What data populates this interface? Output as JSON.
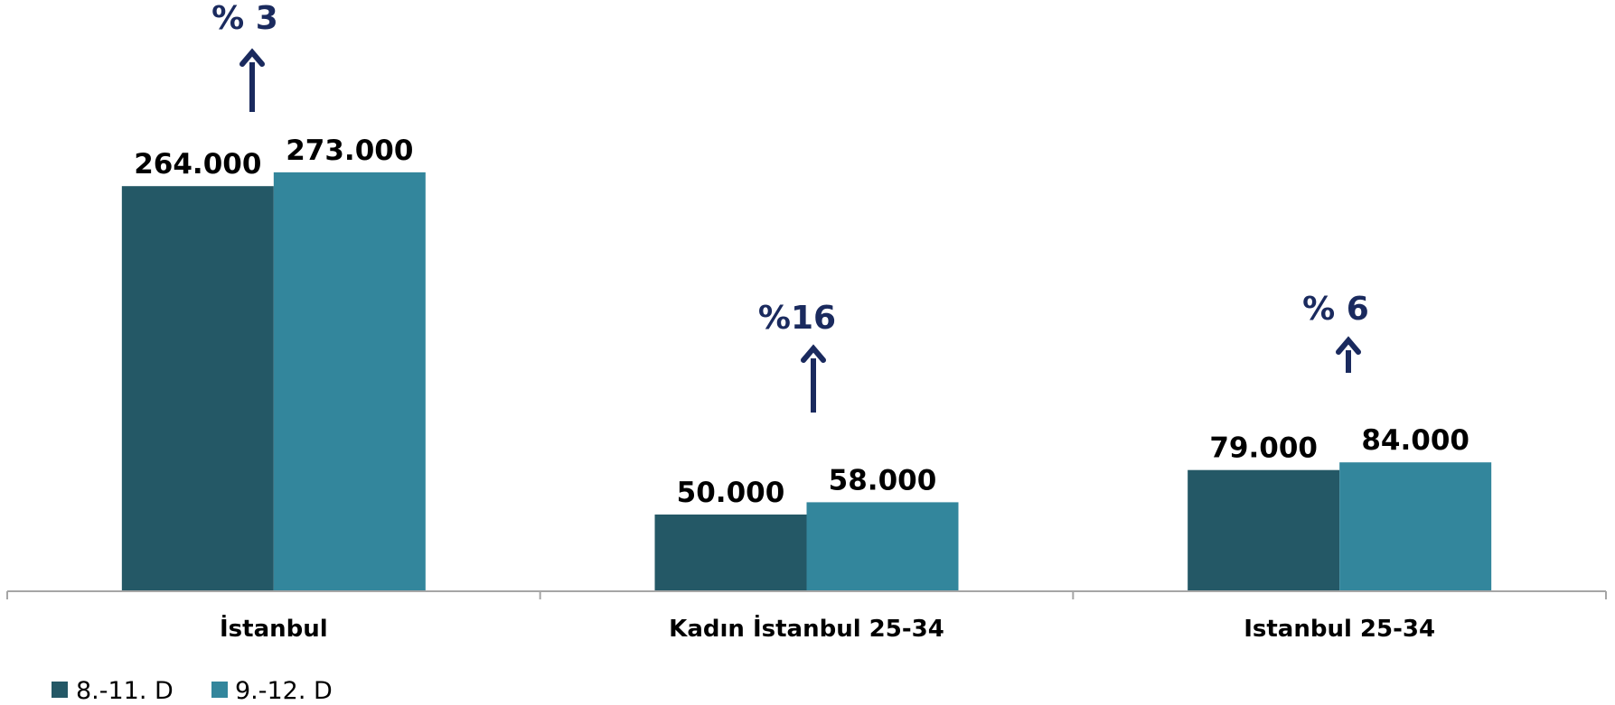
{
  "chart_data": {
    "type": "bar",
    "categories": [
      "İstanbul",
      "Kadın İstanbul 25-34",
      "Istanbul 25-34"
    ],
    "series": [
      {
        "name": "8.-11. D",
        "color": "#245866",
        "values": [
          264000,
          50000,
          79000
        ],
        "labels": [
          "264.000",
          "50.000",
          "79.000"
        ]
      },
      {
        "name": "9.-12. D",
        "color": "#33869c",
        "values": [
          273000,
          58000,
          84000
        ],
        "labels": [
          "273.000",
          "58.000",
          "84.000"
        ]
      }
    ],
    "annotations": [
      {
        "category": "İstanbul",
        "text": "% 3",
        "direction": "up"
      },
      {
        "category": "Kadın İstanbul 25-34",
        "text": "%16",
        "direction": "up"
      },
      {
        "category": "Istanbul 25-34",
        "text": "% 6",
        "direction": "up"
      }
    ],
    "ylim": [
      0,
      300000
    ],
    "grid": false,
    "legend_position": "bottom-left",
    "arrow_color": "#1a2a5e",
    "axis_color": "#a6a6a6"
  }
}
